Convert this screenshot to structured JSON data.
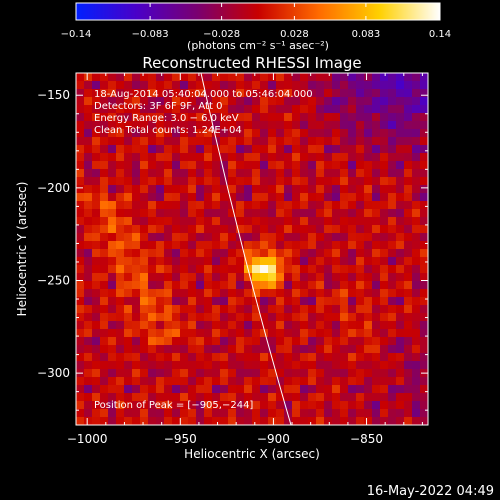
{
  "colorbar": {
    "ticks": [
      "-0.14",
      "-0.083",
      "-0.028",
      "0.028",
      "0.083",
      "0.14"
    ],
    "units": "(photons cm⁻² s⁻¹ asec⁻²)",
    "colormap": [
      "#0020ff",
      "#4a00c8",
      "#7a0070",
      "#c80000",
      "#ff6a00",
      "#ffd000",
      "#ffffff"
    ]
  },
  "chart_data": {
    "type": "heatmap",
    "title": "Reconstructed RHESSI Image",
    "xlabel": "Heliocentric X (arcsec)",
    "ylabel": "Heliocentric Y (arcsec)",
    "xlim": [
      -1006,
      -817
    ],
    "ylim": [
      -328,
      -138
    ],
    "xticks": [
      -1000,
      -950,
      -900,
      -850
    ],
    "yticks": [
      -150,
      -200,
      -250,
      -300
    ],
    "xtick_labels": [
      "−1000",
      "−950",
      "−900",
      "−850"
    ],
    "ytick_labels": [
      "−150",
      "−200",
      "−250",
      "−300"
    ],
    "value_range": [
      -0.14,
      0.14
    ],
    "peak_position": [
      -905,
      -244
    ],
    "annotations": [
      "18-Aug-2014 05:40:04.000 to 05:46:04.000",
      "Detectors: 3F 6F 9F, Att 0",
      "Energy Range: 3.0 − 6.0 keV",
      "Clean     Total counts: 1.24E+04",
      "Position of Peak = [−905,−244]"
    ]
  },
  "footer": {
    "date": "16-May-2022 04:49"
  }
}
